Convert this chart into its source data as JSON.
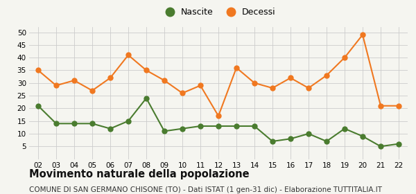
{
  "years": [
    "02",
    "03",
    "04",
    "05",
    "06",
    "07",
    "08",
    "09",
    "10",
    "11",
    "12",
    "13",
    "14",
    "15",
    "16",
    "17",
    "18",
    "19",
    "20",
    "21",
    "22"
  ],
  "nascite": [
    21,
    14,
    14,
    14,
    12,
    15,
    24,
    11,
    12,
    13,
    13,
    13,
    13,
    7,
    8,
    10,
    7,
    12,
    9,
    5,
    6
  ],
  "decessi": [
    35,
    29,
    31,
    27,
    32,
    41,
    35,
    31,
    26,
    29,
    17,
    36,
    30,
    28,
    32,
    28,
    33,
    40,
    49,
    21,
    21
  ],
  "nascite_color": "#4a7c2f",
  "decessi_color": "#f07820",
  "background_color": "#f5f5f0",
  "grid_color": "#cccccc",
  "ylim": [
    0,
    52
  ],
  "yticks": [
    5,
    10,
    15,
    20,
    25,
    30,
    35,
    40,
    45,
    50
  ],
  "legend_nascite": "Nascite",
  "legend_decessi": "Decessi",
  "title": "Movimento naturale della popolazione",
  "subtitle": "COMUNE DI SAN GERMANO CHISONE (TO) - Dati ISTAT (1 gen-31 dic) - Elaborazione TUTTITALIA.IT",
  "title_fontsize": 10.5,
  "subtitle_fontsize": 7.5,
  "marker_size": 5,
  "line_width": 1.5
}
